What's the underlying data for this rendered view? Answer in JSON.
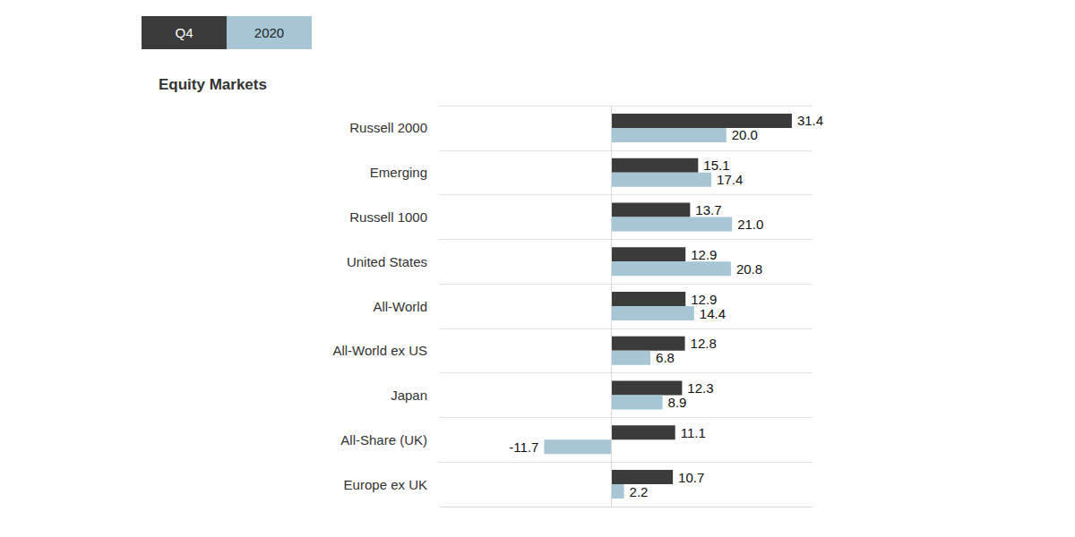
{
  "chart_data": {
    "type": "bar",
    "orientation": "horizontal",
    "title": "Equity Markets",
    "categories": [
      "Russell 2000",
      "Emerging",
      "Russell 1000",
      "United States",
      "All-World",
      "All-World ex US",
      "Japan",
      "All-Share (UK)",
      "Europe ex UK"
    ],
    "series": [
      {
        "name": "Q4",
        "color": "#3b3b3b",
        "values": [
          31.4,
          15.1,
          13.7,
          12.9,
          12.9,
          12.8,
          12.3,
          11.1,
          10.7
        ],
        "value_labels": [
          "31.4",
          "15.1",
          "13.7",
          "12.9",
          "12.9",
          "12.8",
          "12.3",
          "11.1",
          "10.7"
        ]
      },
      {
        "name": "2020",
        "color": "#a6c6d6",
        "values": [
          20.0,
          17.4,
          21.0,
          20.8,
          14.4,
          6.8,
          8.9,
          -11.7,
          2.2
        ],
        "value_labels": [
          "20.0",
          "17.4",
          "21.0",
          "20.8",
          "14.4",
          "6.8",
          "8.9",
          "-11.7",
          "2.2"
        ]
      }
    ],
    "xlim": [
      -30,
      35
    ],
    "xticks": [
      0
    ],
    "grid": true,
    "legend": "upper left",
    "data_labels": true,
    "tick_labels": "y"
  }
}
